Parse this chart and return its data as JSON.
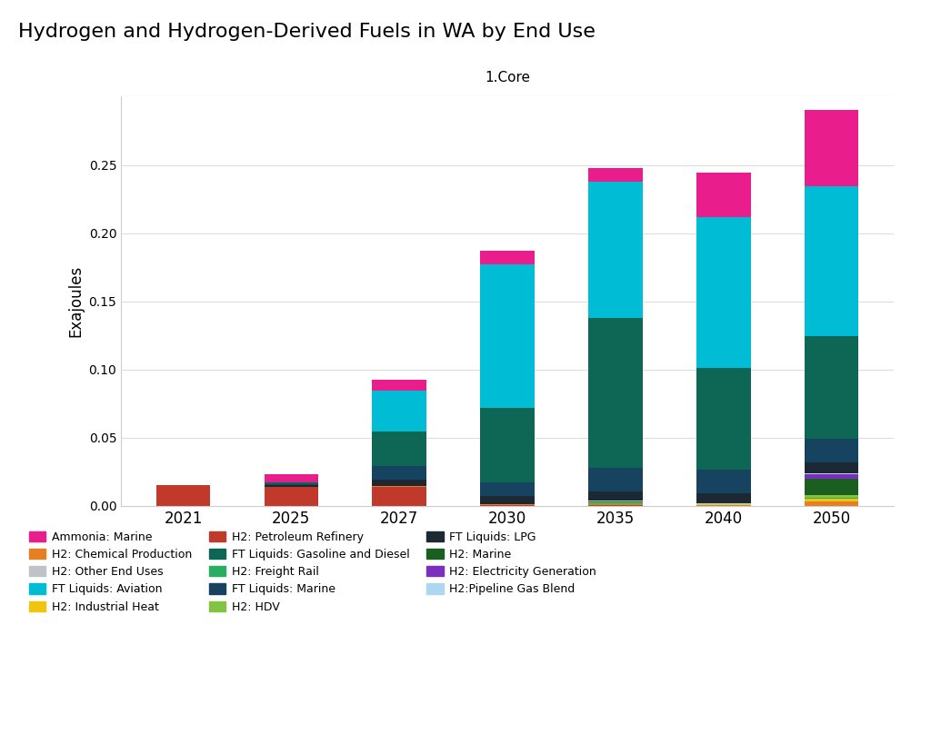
{
  "title": "Hydrogen and Hydrogen-Derived Fuels in WA by End Use",
  "subtitle": "1.Core",
  "ylabel": "Exajoules",
  "years": [
    "2021",
    "2025",
    "2027",
    "2030",
    "2035",
    "2040",
    "2050"
  ],
  "stack_order": [
    "H2: Petroleum Refinery",
    "H2: Chemical Production",
    "H2: Industrial Heat",
    "H2: Freight Rail",
    "H2: HDV",
    "H2: Marine",
    "H2: Electricity Generation",
    "H2:Pipeline Gas Blend",
    "H2: Other End Uses",
    "FT Liquids: LPG",
    "FT Liquids: Marine",
    "FT Liquids: Gasoline and Diesel",
    "FT Liquids: Aviation",
    "Ammonia: Marine"
  ],
  "legend_order": [
    "Ammonia: Marine",
    "H2: Chemical Production",
    "H2: Other End Uses",
    "FT Liquids: Aviation",
    "H2: Industrial Heat",
    "H2: Petroleum Refinery",
    "FT Liquids: Gasoline and Diesel",
    "H2: Freight Rail",
    "FT Liquids: Marine",
    "H2: HDV",
    "FT Liquids: LPG",
    "H2: Marine",
    "H2: Electricity Generation",
    "H2:Pipeline Gas Blend"
  ],
  "series": {
    "H2: Petroleum Refinery": [
      0.0155,
      0.014,
      0.014,
      0.0005,
      0.0005,
      0.0,
      0.0
    ],
    "H2: Chemical Production": [
      0.0,
      0.0,
      0.0005,
      0.0005,
      0.0005,
      0.0005,
      0.003
    ],
    "H2: Industrial Heat": [
      0.0,
      0.0,
      0.0,
      0.0,
      0.0005,
      0.001,
      0.002
    ],
    "H2: Freight Rail": [
      0.0,
      0.0,
      0.0,
      0.0,
      0.0005,
      0.0,
      0.001
    ],
    "H2: HDV": [
      0.0,
      0.0,
      0.0,
      0.0,
      0.0005,
      0.0,
      0.002
    ],
    "H2: Marine": [
      0.0,
      0.0,
      0.0,
      0.0,
      0.0005,
      0.0,
      0.012
    ],
    "H2: Electricity Generation": [
      0.0,
      0.0,
      0.0,
      0.0,
      0.0005,
      0.0,
      0.003
    ],
    "H2:Pipeline Gas Blend": [
      0.0,
      0.0,
      0.0,
      0.0,
      0.0005,
      0.0005,
      0.001
    ],
    "H2: Other End Uses": [
      0.0,
      0.0,
      0.0,
      0.0,
      0.0,
      0.0,
      0.0
    ],
    "FT Liquids: LPG": [
      0.0,
      0.001,
      0.005,
      0.006,
      0.0065,
      0.007,
      0.008
    ],
    "FT Liquids: Marine": [
      0.0,
      0.001,
      0.01,
      0.01,
      0.0175,
      0.0175,
      0.0175
    ],
    "FT Liquids: Gasoline and Diesel": [
      0.0,
      0.001,
      0.025,
      0.055,
      0.11,
      0.075,
      0.075
    ],
    "FT Liquids: Aviation": [
      0.0,
      0.0,
      0.03,
      0.105,
      0.1,
      0.11,
      0.11
    ],
    "Ammonia: Marine": [
      0.0,
      0.006,
      0.008,
      0.01,
      0.01,
      0.033,
      0.056
    ]
  },
  "colors": {
    "H2: Petroleum Refinery": "#C0392B",
    "H2: Chemical Production": "#E67E22",
    "H2: Industrial Heat": "#F1C40F",
    "H2: Freight Rail": "#27AE60",
    "H2: HDV": "#82C341",
    "H2: Marine": "#1A5E20",
    "H2: Electricity Generation": "#7B2FBE",
    "H2:Pipeline Gas Blend": "#AED6F1",
    "H2: Other End Uses": "#BDC3C7",
    "FT Liquids: LPG": "#1C2833",
    "FT Liquids: Marine": "#154360",
    "FT Liquids: Gasoline and Diesel": "#0E6655",
    "FT Liquids: Aviation": "#00BCD4",
    "Ammonia: Marine": "#E91E8C"
  },
  "ylim": [
    0,
    0.3
  ],
  "yticks": [
    0.0,
    0.05,
    0.1,
    0.15,
    0.2,
    0.25
  ],
  "bar_width": 0.5,
  "figsize": [
    10.24,
    8.19
  ],
  "dpi": 100
}
